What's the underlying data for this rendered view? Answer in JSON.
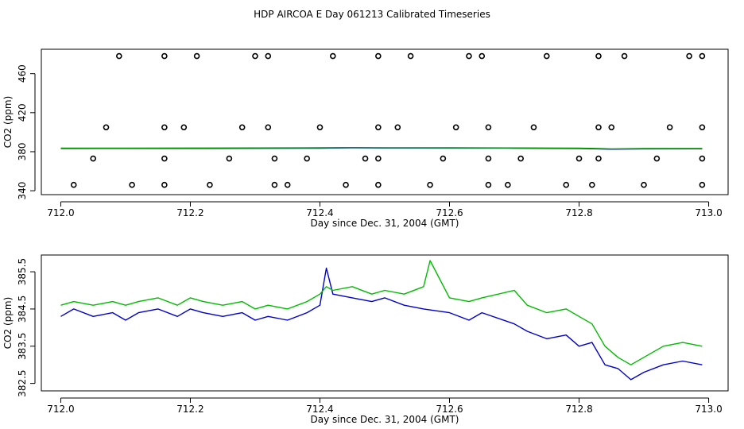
{
  "title": "HDP AIRCOA E  Day 061213  Calibrated Timeseries",
  "chart_data": [
    {
      "type": "scatter",
      "xlabel": "Day since Dec. 31, 2004 (GMT)",
      "ylabel": "CO2 (ppm)",
      "xlim": [
        711.97,
        713.03
      ],
      "ylim": [
        336,
        485
      ],
      "xticks": [
        712.0,
        712.2,
        712.4,
        712.6,
        712.8,
        713.0
      ],
      "xtick_labels": [
        "712.0",
        "712.2",
        "712.4",
        "712.6",
        "712.8",
        "713.0"
      ],
      "yticks": [
        340,
        380,
        420,
        460
      ],
      "ytick_labels": [
        "340",
        "380",
        "420",
        "460"
      ],
      "grid": false,
      "series": [
        {
          "color": "#000000",
          "marker": "open-circle",
          "points": [
            [
              712.09,
              478
            ],
            [
              712.16,
              478
            ],
            [
              712.21,
              478
            ],
            [
              712.3,
              478
            ],
            [
              712.32,
              478
            ],
            [
              712.42,
              478
            ],
            [
              712.49,
              478
            ],
            [
              712.54,
              478
            ],
            [
              712.63,
              478
            ],
            [
              712.65,
              478
            ],
            [
              712.75,
              478
            ],
            [
              712.83,
              478
            ],
            [
              712.87,
              478
            ],
            [
              712.97,
              478
            ],
            [
              712.99,
              478
            ],
            [
              712.07,
              405
            ],
            [
              712.16,
              405
            ],
            [
              712.19,
              405
            ],
            [
              712.28,
              405
            ],
            [
              712.32,
              405
            ],
            [
              712.4,
              405
            ],
            [
              712.49,
              405
            ],
            [
              712.52,
              405
            ],
            [
              712.61,
              405
            ],
            [
              712.66,
              405
            ],
            [
              712.73,
              405
            ],
            [
              712.83,
              405
            ],
            [
              712.85,
              405
            ],
            [
              712.94,
              405
            ],
            [
              712.99,
              405
            ],
            [
              712.05,
              373
            ],
            [
              712.16,
              373
            ],
            [
              712.26,
              373
            ],
            [
              712.33,
              373
            ],
            [
              712.38,
              373
            ],
            [
              712.47,
              373
            ],
            [
              712.49,
              373
            ],
            [
              712.59,
              373
            ],
            [
              712.66,
              373
            ],
            [
              712.71,
              373
            ],
            [
              712.8,
              373
            ],
            [
              712.83,
              373
            ],
            [
              712.92,
              373
            ],
            [
              712.99,
              373
            ],
            [
              712.02,
              346
            ],
            [
              712.11,
              346
            ],
            [
              712.16,
              346
            ],
            [
              712.23,
              346
            ],
            [
              712.33,
              346
            ],
            [
              712.35,
              346
            ],
            [
              712.44,
              346
            ],
            [
              712.49,
              346
            ],
            [
              712.57,
              346
            ],
            [
              712.66,
              346
            ],
            [
              712.69,
              346
            ],
            [
              712.78,
              346
            ],
            [
              712.82,
              346
            ],
            [
              712.9,
              346
            ],
            [
              712.99,
              346
            ]
          ]
        },
        {
          "color": "#0000cc",
          "marker": "line",
          "x": [
            712.0,
            712.1,
            712.2,
            712.3,
            712.4,
            712.45,
            712.5,
            712.6,
            712.7,
            712.8,
            712.85,
            712.9,
            712.99
          ],
          "y": [
            383.3,
            383.4,
            383.4,
            383.5,
            383.6,
            384.0,
            383.8,
            383.7,
            383.6,
            383.3,
            382.6,
            382.9,
            383.0
          ]
        },
        {
          "color": "#009900",
          "marker": "line",
          "x": [
            712.0,
            712.1,
            712.2,
            712.3,
            712.4,
            712.45,
            712.5,
            712.6,
            712.7,
            712.8,
            712.85,
            712.9,
            712.99
          ],
          "y": [
            383.6,
            383.7,
            383.8,
            383.9,
            384.0,
            384.3,
            384.1,
            384.0,
            383.9,
            383.6,
            382.9,
            383.2,
            383.3
          ]
        }
      ]
    },
    {
      "type": "line",
      "xlabel": "Day since Dec. 31, 2004 (GMT)",
      "ylabel": "CO2 (ppm)",
      "xlim": [
        711.97,
        713.03
      ],
      "ylim": [
        382.3,
        385.95
      ],
      "xticks": [
        712.0,
        712.2,
        712.4,
        712.6,
        712.8,
        713.0
      ],
      "xtick_labels": [
        "712.0",
        "712.2",
        "712.4",
        "712.6",
        "712.8",
        "713.0"
      ],
      "yticks": [
        382.5,
        383.5,
        384.5,
        385.5
      ],
      "ytick_labels": [
        "382.5",
        "383.5",
        "384.5",
        "385.5"
      ],
      "grid": false,
      "series": [
        {
          "color": "#0000cc",
          "x": [
            712.0,
            712.02,
            712.05,
            712.08,
            712.1,
            712.12,
            712.15,
            712.18,
            712.2,
            712.22,
            712.25,
            712.28,
            712.3,
            712.32,
            712.35,
            712.38,
            712.4,
            712.41,
            712.42,
            712.45,
            712.48,
            712.5,
            712.53,
            712.56,
            712.6,
            712.63,
            712.65,
            712.7,
            712.72,
            712.75,
            712.78,
            712.8,
            712.82,
            712.84,
            712.86,
            712.88,
            712.9,
            712.93,
            712.96,
            712.99
          ],
          "y": [
            384.3,
            384.5,
            384.3,
            384.4,
            384.2,
            384.4,
            384.5,
            384.3,
            384.5,
            384.4,
            384.3,
            384.4,
            384.2,
            384.3,
            384.2,
            384.4,
            384.6,
            385.6,
            384.9,
            384.8,
            384.7,
            384.8,
            384.6,
            384.5,
            384.4,
            384.2,
            384.4,
            384.1,
            383.9,
            383.7,
            383.8,
            383.5,
            383.6,
            383.0,
            382.9,
            382.6,
            382.8,
            383.0,
            383.1,
            383.0
          ]
        },
        {
          "color": "#00bb00",
          "x": [
            712.0,
            712.02,
            712.05,
            712.08,
            712.1,
            712.12,
            712.15,
            712.18,
            712.2,
            712.22,
            712.25,
            712.28,
            712.3,
            712.32,
            712.35,
            712.38,
            712.4,
            712.41,
            712.42,
            712.45,
            712.48,
            712.5,
            712.53,
            712.56,
            712.57,
            712.6,
            712.63,
            712.65,
            712.7,
            712.72,
            712.75,
            712.78,
            712.8,
            712.82,
            712.84,
            712.86,
            712.88,
            712.9,
            712.93,
            712.96,
            712.99
          ],
          "y": [
            384.6,
            384.7,
            384.6,
            384.7,
            384.6,
            384.7,
            384.8,
            384.6,
            384.8,
            384.7,
            384.6,
            384.7,
            384.5,
            384.6,
            384.5,
            384.7,
            384.9,
            385.1,
            385.0,
            385.1,
            384.9,
            385.0,
            384.9,
            385.1,
            385.8,
            384.8,
            384.7,
            384.8,
            385.0,
            384.6,
            384.4,
            384.5,
            384.3,
            384.1,
            383.5,
            383.2,
            383.0,
            383.2,
            383.5,
            383.6,
            383.5
          ]
        }
      ]
    }
  ]
}
